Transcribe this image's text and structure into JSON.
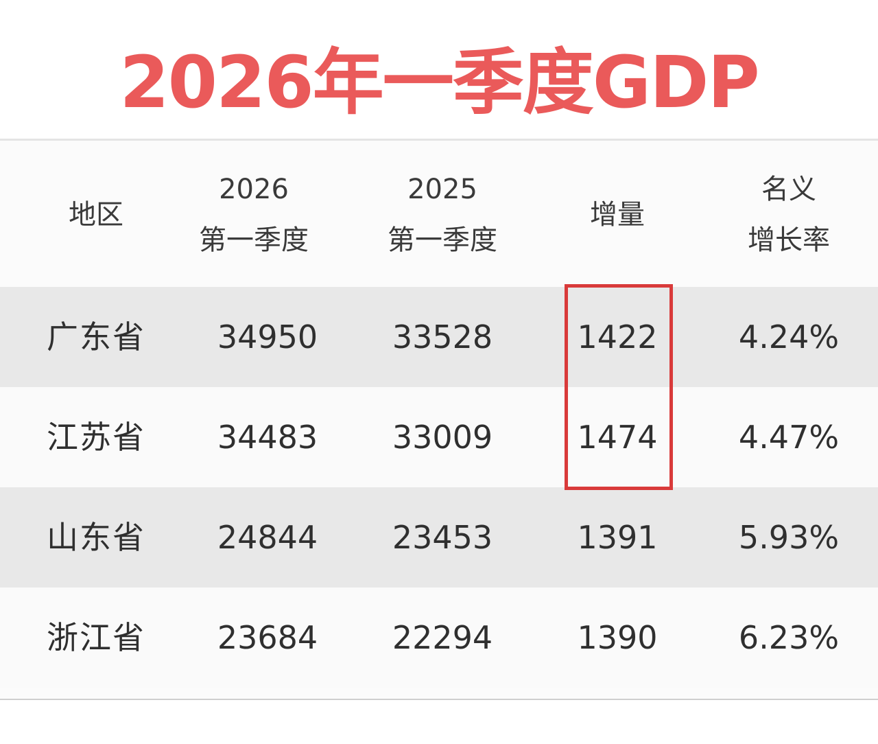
{
  "title": "2026年一季度GDP",
  "colors": {
    "title": "#ea5a5a",
    "highlight": "#d93a3a",
    "row_shaded": "#e8e8e8",
    "row_plain": "#fafafa"
  },
  "chart_data": {
    "type": "table",
    "title": "2026年一季度GDP",
    "columns": [
      [
        "地区"
      ],
      [
        "2026",
        "第一季度"
      ],
      [
        "2025",
        "第一季度"
      ],
      [
        "增量"
      ],
      [
        "名义",
        "增长率"
      ]
    ],
    "rows": [
      [
        "广东省",
        "34950",
        "33528",
        "1422",
        "4.24%"
      ],
      [
        "江苏省",
        "34483",
        "33009",
        "1474",
        "4.47%"
      ],
      [
        "山东省",
        "24844",
        "23453",
        "1391",
        "5.93%"
      ],
      [
        "浙江省",
        "23684",
        "22294",
        "1390",
        "6.23%"
      ]
    ],
    "highlighted_cells": [
      [
        0,
        3
      ],
      [
        1,
        3
      ]
    ]
  }
}
